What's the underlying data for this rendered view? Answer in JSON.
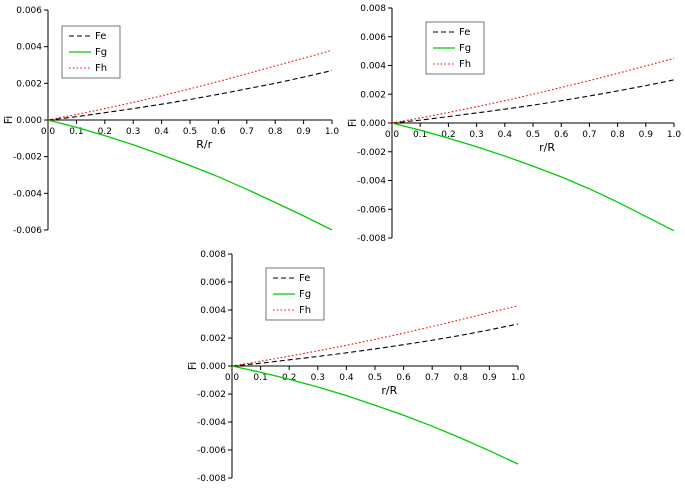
{
  "figure": {
    "background": "#ffffff",
    "axis_color": "#000000",
    "legend_border_color": "#666666"
  },
  "chart_data": [
    {
      "id": "top-left",
      "type": "line",
      "title": "",
      "xlabel": "R/r",
      "ylabel": "Fi",
      "xlim": [
        0.0,
        1.0
      ],
      "ylim": [
        -0.006,
        0.006
      ],
      "xticks": [
        0.0,
        0.1,
        0.2,
        0.3,
        0.4,
        0.5,
        0.6,
        0.7,
        0.8,
        0.9,
        1.0
      ],
      "yticks": [
        -0.006,
        -0.004,
        -0.002,
        0.0,
        0.002,
        0.004,
        0.006
      ],
      "x": [
        0.0,
        0.1,
        0.2,
        0.3,
        0.4,
        0.5,
        0.6,
        0.7,
        0.8,
        0.9,
        1.0
      ],
      "grid": false,
      "legend": {
        "position": "upper-left",
        "offset": [
          14,
          16
        ]
      },
      "series": [
        {
          "name": "Fe",
          "color": "#000000",
          "style": "dashed",
          "values": [
            0.0,
            0.00018,
            0.0004,
            0.00062,
            0.00086,
            0.00112,
            0.0014,
            0.0017,
            0.002,
            0.00234,
            0.0027
          ]
        },
        {
          "name": "Fg",
          "color": "#00cc00",
          "style": "solid",
          "values": [
            0.0,
            -0.0004,
            -0.00085,
            -0.00135,
            -0.0019,
            -0.00248,
            -0.0031,
            -0.00378,
            -0.0045,
            -0.00523,
            -0.006
          ]
        },
        {
          "name": "Fh",
          "color": "#ff0000",
          "style": "dotted",
          "values": [
            0.0,
            0.0003,
            0.00062,
            0.00096,
            0.00132,
            0.0017,
            0.0021,
            0.00252,
            0.00295,
            0.00337,
            0.0038
          ]
        }
      ]
    },
    {
      "id": "top-right",
      "type": "line",
      "title": "",
      "xlabel": "r/R",
      "ylabel": "Fi",
      "xlim": [
        0.0,
        1.0
      ],
      "ylim": [
        -0.008,
        0.008
      ],
      "xticks": [
        0.0,
        0.1,
        0.2,
        0.3,
        0.4,
        0.5,
        0.6,
        0.7,
        0.8,
        0.9,
        1.0
      ],
      "yticks": [
        -0.008,
        -0.006,
        -0.004,
        -0.002,
        0.0,
        0.002,
        0.004,
        0.006,
        0.008
      ],
      "x": [
        0.0,
        0.1,
        0.2,
        0.3,
        0.4,
        0.5,
        0.6,
        0.7,
        0.8,
        0.9,
        1.0
      ],
      "grid": false,
      "legend": {
        "position": "upper-left",
        "offset": [
          34,
          14
        ]
      },
      "series": [
        {
          "name": "Fe",
          "color": "#000000",
          "style": "dashed",
          "values": [
            0.0,
            0.0002,
            0.00045,
            0.0007,
            0.00096,
            0.00124,
            0.00155,
            0.00188,
            0.00223,
            0.0026,
            0.003
          ]
        },
        {
          "name": "Fg",
          "color": "#00cc00",
          "style": "solid",
          "values": [
            0.0,
            -0.0005,
            -0.00105,
            -0.00165,
            -0.0023,
            -0.003,
            -0.00375,
            -0.00458,
            -0.0055,
            -0.0065,
            -0.0075
          ]
        },
        {
          "name": "Fh",
          "color": "#ff0000",
          "style": "dotted",
          "values": [
            0.0,
            0.00035,
            0.00073,
            0.00113,
            0.00155,
            0.002,
            0.00247,
            0.00295,
            0.00345,
            0.00397,
            0.0045
          ]
        }
      ]
    },
    {
      "id": "bottom-center",
      "type": "line",
      "title": "",
      "xlabel": "r/R",
      "ylabel": "Fi",
      "xlim": [
        0.0,
        1.0
      ],
      "ylim": [
        -0.008,
        0.008
      ],
      "xticks": [
        0.0,
        0.1,
        0.2,
        0.3,
        0.4,
        0.5,
        0.6,
        0.7,
        0.8,
        0.9,
        1.0
      ],
      "yticks": [
        -0.008,
        -0.006,
        -0.004,
        -0.002,
        0.0,
        0.002,
        0.004,
        0.006,
        0.008
      ],
      "x": [
        0.0,
        0.1,
        0.2,
        0.3,
        0.4,
        0.5,
        0.6,
        0.7,
        0.8,
        0.9,
        1.0
      ],
      "grid": false,
      "legend": {
        "position": "upper-left",
        "offset": [
          34,
          14
        ]
      },
      "series": [
        {
          "name": "Fe",
          "color": "#000000",
          "style": "dashed",
          "values": [
            0.0,
            0.0002,
            0.00044,
            0.00068,
            0.00094,
            0.00122,
            0.00152,
            0.00184,
            0.00219,
            0.00258,
            0.003
          ]
        },
        {
          "name": "Fg",
          "color": "#00cc00",
          "style": "solid",
          "values": [
            0.0,
            -0.00045,
            -0.00095,
            -0.0015,
            -0.00212,
            -0.0028,
            -0.00352,
            -0.0043,
            -0.00515,
            -0.00605,
            -0.007
          ]
        },
        {
          "name": "Fh",
          "color": "#ff0000",
          "style": "dotted",
          "values": [
            0.0,
            0.00034,
            0.0007,
            0.00108,
            0.00148,
            0.0019,
            0.00235,
            0.00282,
            0.00331,
            0.00382,
            0.0043
          ]
        }
      ]
    }
  ]
}
